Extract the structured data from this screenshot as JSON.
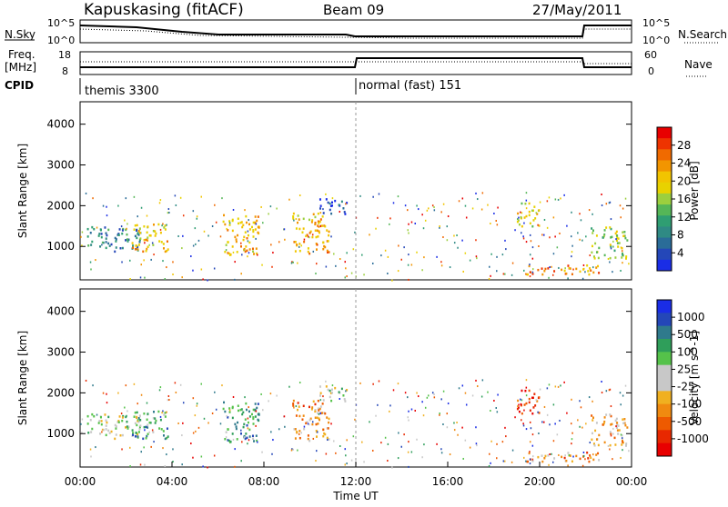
{
  "header": {
    "station": "Kapuskasing (fitACF)",
    "beam": "Beam 09",
    "date": "27/May/2011"
  },
  "top_panels": {
    "nsky_label": "N.Sky",
    "nsearch_label": "N.Search",
    "freq_label_line1": "Freq.",
    "freq_label_line2": "[MHz]",
    "nave_label": "Nave",
    "cpid_label": "CPID",
    "noise_ticks": [
      "10^5",
      "10^0"
    ],
    "freq_ticks": [
      "18",
      "8"
    ],
    "nave_ticks": [
      "60",
      "0"
    ],
    "cpid_segments": [
      {
        "start_hour": 0,
        "end_hour": 12,
        "label": "themis 3300"
      },
      {
        "start_hour": 12,
        "end_hour": 24,
        "label": "normal (fast) 151"
      }
    ]
  },
  "colorbars": {
    "power": {
      "title": "Power [dB]",
      "ticks": [
        "28",
        "24",
        "20",
        "16",
        "12",
        "8",
        "4"
      ],
      "colors": [
        "#e80000",
        "#ee3300",
        "#f06a00",
        "#f29500",
        "#f2c400",
        "#e8d200",
        "#9ccf3e",
        "#55b657",
        "#2f9e72",
        "#2f8a84",
        "#2a6c98",
        "#2447b8",
        "#1a2de6"
      ]
    },
    "velocity": {
      "title": "Velocity [m s^-1]",
      "ticks": [
        "1000",
        "500",
        "100",
        "25",
        "-25",
        "-100",
        "-500",
        "-1000"
      ],
      "colors": [
        "#1a2de6",
        "#2447b8",
        "#2f7a8c",
        "#2f9e5a",
        "#55c24a",
        "#c8c8c8",
        "#c8c8c8",
        "#f0b020",
        "#f08a10",
        "#ee5a00",
        "#e82800",
        "#e80000"
      ]
    }
  },
  "chart_data": [
    {
      "type": "heatmap",
      "title": "Power",
      "ylabel": "Slant Range [km]",
      "xlabel": "",
      "ylim": [
        180,
        4550
      ],
      "xlim": [
        0,
        24
      ],
      "y_ticks": [
        "4000",
        "3000",
        "2000",
        "1000"
      ],
      "y_tick_values": [
        4000,
        3000,
        2000,
        1000
      ],
      "clusters": [
        {
          "t": 1.5,
          "r": 1200,
          "dt": 1.2,
          "dr": 300,
          "level": 9
        },
        {
          "t": 3.0,
          "r": 1250,
          "dt": 0.8,
          "dr": 350,
          "level": 4
        },
        {
          "t": 7.0,
          "r": 1300,
          "dt": 0.8,
          "dr": 500,
          "level": 4
        },
        {
          "t": 10.0,
          "r": 1350,
          "dt": 0.8,
          "dr": 500,
          "level": 4
        },
        {
          "t": 11.0,
          "r": 2000,
          "dt": 0.6,
          "dr": 200,
          "level": 11
        },
        {
          "t": 19.5,
          "r": 1800,
          "dt": 0.5,
          "dr": 300,
          "level": 5
        },
        {
          "t": 21.0,
          "r": 450,
          "dt": 1.6,
          "dr": 120,
          "level": 3
        },
        {
          "t": 23.0,
          "r": 1100,
          "dt": 0.8,
          "dr": 400,
          "level": 6
        }
      ]
    },
    {
      "type": "heatmap",
      "title": "Velocity",
      "ylabel": "Slant Range [km]",
      "xlabel": "Time UT",
      "ylim": [
        180,
        4550
      ],
      "xlim": [
        0,
        24
      ],
      "y_ticks": [
        "4000",
        "3000",
        "2000",
        "1000"
      ],
      "y_tick_values": [
        4000,
        3000,
        2000,
        1000
      ],
      "x_ticks": [
        "00:00",
        "04:00",
        "08:00",
        "12:00",
        "16:00",
        "20:00",
        "00:00"
      ],
      "clusters": [
        {
          "t": 1.5,
          "r": 1200,
          "dt": 1.2,
          "dr": 300,
          "level": 5
        },
        {
          "t": 3.0,
          "r": 1250,
          "dt": 0.8,
          "dr": 350,
          "level": 3
        },
        {
          "t": 7.0,
          "r": 1300,
          "dt": 0.8,
          "dr": 500,
          "level": 3
        },
        {
          "t": 10.0,
          "r": 1350,
          "dt": 0.8,
          "dr": 500,
          "level": 8
        },
        {
          "t": 11.0,
          "r": 2000,
          "dt": 0.6,
          "dr": 200,
          "level": 5
        },
        {
          "t": 19.5,
          "r": 1800,
          "dt": 0.5,
          "dr": 300,
          "level": 10
        },
        {
          "t": 21.0,
          "r": 450,
          "dt": 1.6,
          "dr": 120,
          "level": 8
        },
        {
          "t": 23.0,
          "r": 1100,
          "dt": 0.8,
          "dr": 400,
          "level": 7
        }
      ]
    }
  ]
}
